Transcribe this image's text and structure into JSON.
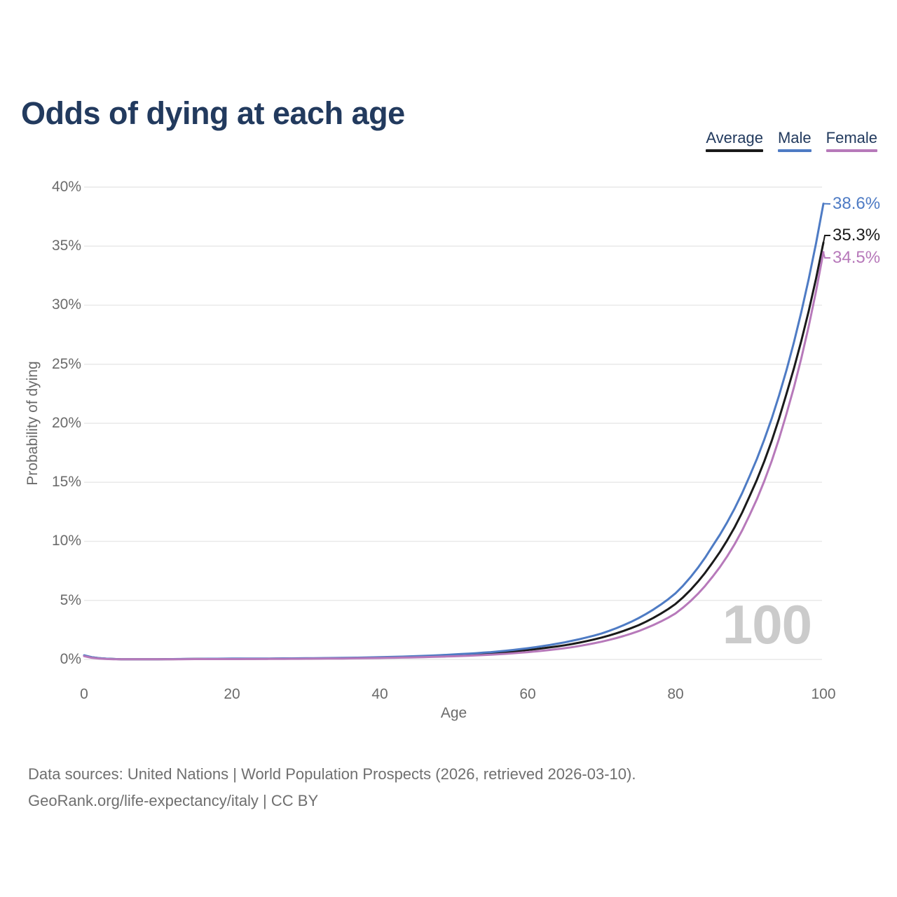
{
  "title": "Odds of dying at each age",
  "colors": {
    "title_navy": "#223a5e",
    "axis_gray": "#6b6b6b",
    "grid_gray": "#e9e9e9",
    "watermark_gray": "#cbcbcb",
    "average_black": "#1a1a1a",
    "male_blue": "#4e7bc4",
    "female_purple": "#b779ba"
  },
  "legend": [
    {
      "label": "Average",
      "color": "#1a1a1a"
    },
    {
      "label": "Male",
      "color": "#4e7bc4"
    },
    {
      "label": "Female",
      "color": "#b779ba"
    }
  ],
  "watermark": "100",
  "footer": {
    "line1": "Data sources: United Nations | World Population Prospects (2026, retrieved 2026-03-10).",
    "line2": "GeoRank.org/life-expectancy/italy | CC BY"
  },
  "chart_data": {
    "type": "line",
    "title": "Odds of dying at each age",
    "xlabel": "Age",
    "ylabel": "Probability of dying",
    "xlim": [
      0,
      100
    ],
    "ylim": [
      0,
      40
    ],
    "x_ticks": [
      "0",
      "20",
      "40",
      "60",
      "80",
      "100"
    ],
    "y_ticks": [
      "0%",
      "5%",
      "10%",
      "15%",
      "20%",
      "25%",
      "30%",
      "35%",
      "40%"
    ],
    "grid": "horizontal gridlines only",
    "legend_position": "top-right",
    "x": [
      0,
      5,
      10,
      15,
      20,
      25,
      30,
      35,
      40,
      45,
      50,
      55,
      60,
      65,
      70,
      75,
      80,
      85,
      90,
      95,
      100
    ],
    "series": [
      {
        "name": "Average",
        "color": "#1a1a1a",
        "end_label": "35.3%",
        "values": [
          0.32,
          0.02,
          0.02,
          0.04,
          0.05,
          0.06,
          0.08,
          0.11,
          0.16,
          0.23,
          0.35,
          0.52,
          0.8,
          1.2,
          1.85,
          2.9,
          4.7,
          8.2,
          13.8,
          22.5,
          35.3
        ]
      },
      {
        "name": "Male",
        "color": "#4e7bc4",
        "end_label": "38.6%",
        "values": [
          0.35,
          0.02,
          0.02,
          0.05,
          0.07,
          0.08,
          0.1,
          0.13,
          0.19,
          0.28,
          0.42,
          0.62,
          0.95,
          1.45,
          2.2,
          3.5,
          5.6,
          9.6,
          15.5,
          24.5,
          38.6
        ]
      },
      {
        "name": "Female",
        "color": "#b779ba",
        "end_label": "34.5%",
        "values": [
          0.28,
          0.01,
          0.01,
          0.03,
          0.03,
          0.04,
          0.06,
          0.08,
          0.12,
          0.18,
          0.27,
          0.4,
          0.62,
          0.95,
          1.5,
          2.4,
          3.9,
          7.0,
          12.2,
          20.8,
          34.5
        ]
      }
    ]
  }
}
